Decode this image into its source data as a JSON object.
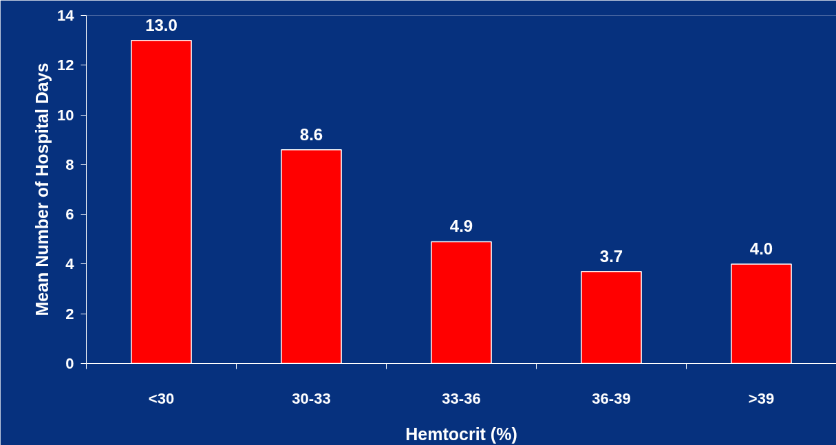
{
  "chart_data": {
    "type": "bar",
    "xlabel": "Hemtocrit (%)",
    "ylabel": "Mean Number of Hospital Days",
    "categories": [
      "<30",
      "30-33",
      "33-36",
      "36-39",
      ">39"
    ],
    "values": [
      13.0,
      8.6,
      4.9,
      3.7,
      4.0
    ],
    "color": "#ff0000",
    "ylim": [
      0,
      14
    ],
    "yticks": [
      0,
      2,
      4,
      6,
      8,
      10,
      12,
      14
    ],
    "grid": false,
    "value_labels": [
      "13.0",
      "8.6",
      "4.9",
      "3.7",
      "4.0"
    ]
  }
}
